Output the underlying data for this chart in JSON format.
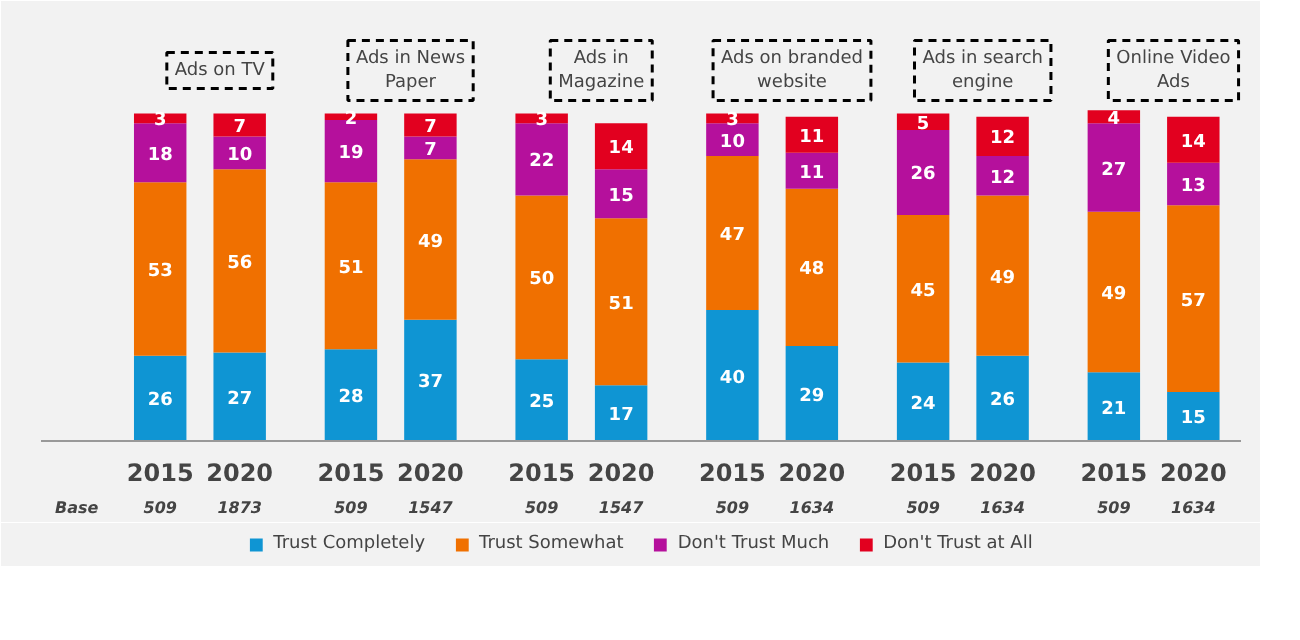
{
  "chart_data": {
    "type": "bar",
    "stacked": true,
    "data_labels": true,
    "grid": false,
    "legend": "bottom",
    "categories": [
      "2015",
      "2020",
      "2015",
      "2020",
      "2015",
      "2020",
      "2015",
      "2020",
      "2015",
      "2020",
      "2015",
      "2020"
    ],
    "series": [
      {
        "name": "Trust Completely",
        "color": "#0f95d3",
        "values": [
          26,
          27,
          28,
          37,
          25,
          17,
          40,
          29,
          24,
          26,
          21,
          15
        ]
      },
      {
        "name": "Trust Somewhat",
        "color": "#f07000",
        "values": [
          53,
          56,
          51,
          49,
          50,
          51,
          47,
          48,
          45,
          49,
          49,
          57
        ]
      },
      {
        "name": "Don't Trust Much",
        "color": "#b5109c",
        "values": [
          18,
          10,
          19,
          7,
          22,
          15,
          10,
          11,
          26,
          12,
          27,
          13
        ]
      },
      {
        "name": "Don't Trust at All",
        "color": "#e2001f",
        "values": [
          3,
          7,
          2,
          7,
          3,
          14,
          3,
          11,
          5,
          12,
          4,
          14
        ]
      }
    ],
    "annotations": [
      "Ads on TV",
      "Ads in News\nPaper",
      "Ads in\nMagazine",
      "Ads on branded\nwebsite",
      "Ads in search\nengine",
      "Online Video\nAds",
      "Base",
      "509",
      "1873",
      "509",
      "1547",
      "509",
      "1547",
      "509",
      "1634",
      "509",
      "1634",
      "509",
      "1634"
    ]
  }
}
